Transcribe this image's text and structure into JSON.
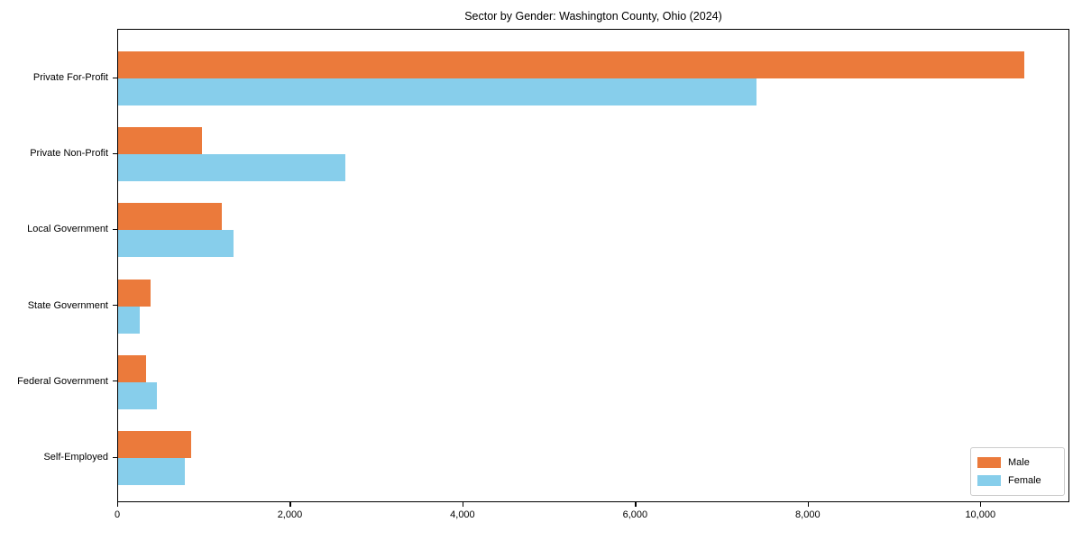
{
  "chart_data": {
    "type": "bar",
    "orientation": "horizontal",
    "title": "Sector by Gender: Washington County, Ohio (2024)",
    "categories": [
      "Private For-Profit",
      "Private Non-Profit",
      "Local Government",
      "State Government",
      "Federal Government",
      "Self-Employed"
    ],
    "series": [
      {
        "name": "Male",
        "color": "#EB7A3B",
        "values": [
          10500,
          970,
          1200,
          375,
          325,
          850
        ]
      },
      {
        "name": "Female",
        "color": "#87CEEB",
        "values": [
          7400,
          2630,
          1340,
          250,
          450,
          775
        ]
      }
    ],
    "xlim": [
      0,
      11000
    ],
    "xticks": [
      0,
      2000,
      4000,
      6000,
      8000,
      10000
    ],
    "xtick_labels": [
      "0",
      "2,000",
      "4,000",
      "6,000",
      "8,000",
      "10,000"
    ],
    "grid": false,
    "legend_position": "lower right"
  },
  "legend": {
    "male_label": "Male",
    "female_label": "Female"
  },
  "colors": {
    "male": "#EB7A3B",
    "female": "#87CEEB",
    "axis": "#000000",
    "legend_border": "#cccccc",
    "background": "#ffffff"
  }
}
